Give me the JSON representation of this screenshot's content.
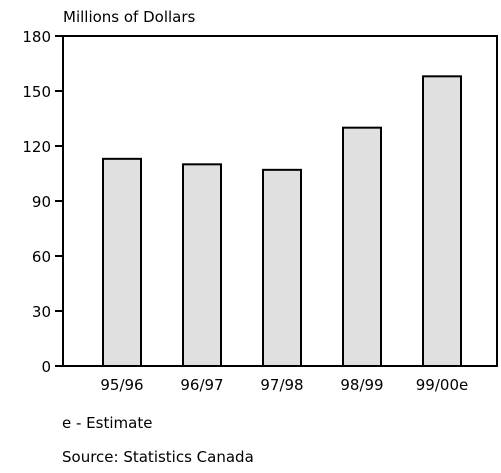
{
  "chart_data": {
    "type": "bar",
    "ylabel": "Millions of Dollars",
    "categories": [
      "95/96",
      "96/97",
      "97/98",
      "98/99",
      "99/00e"
    ],
    "values": [
      113,
      110,
      107,
      130,
      158
    ],
    "ylim": [
      0,
      180
    ],
    "yticks": [
      0,
      30,
      60,
      90,
      120,
      150,
      180
    ],
    "grid": false,
    "bar_fill": "#e0e0e0",
    "bar_stroke": "#000000"
  },
  "notes": {
    "estimate": "e - Estimate",
    "source": "Source: Statistics Canada"
  }
}
